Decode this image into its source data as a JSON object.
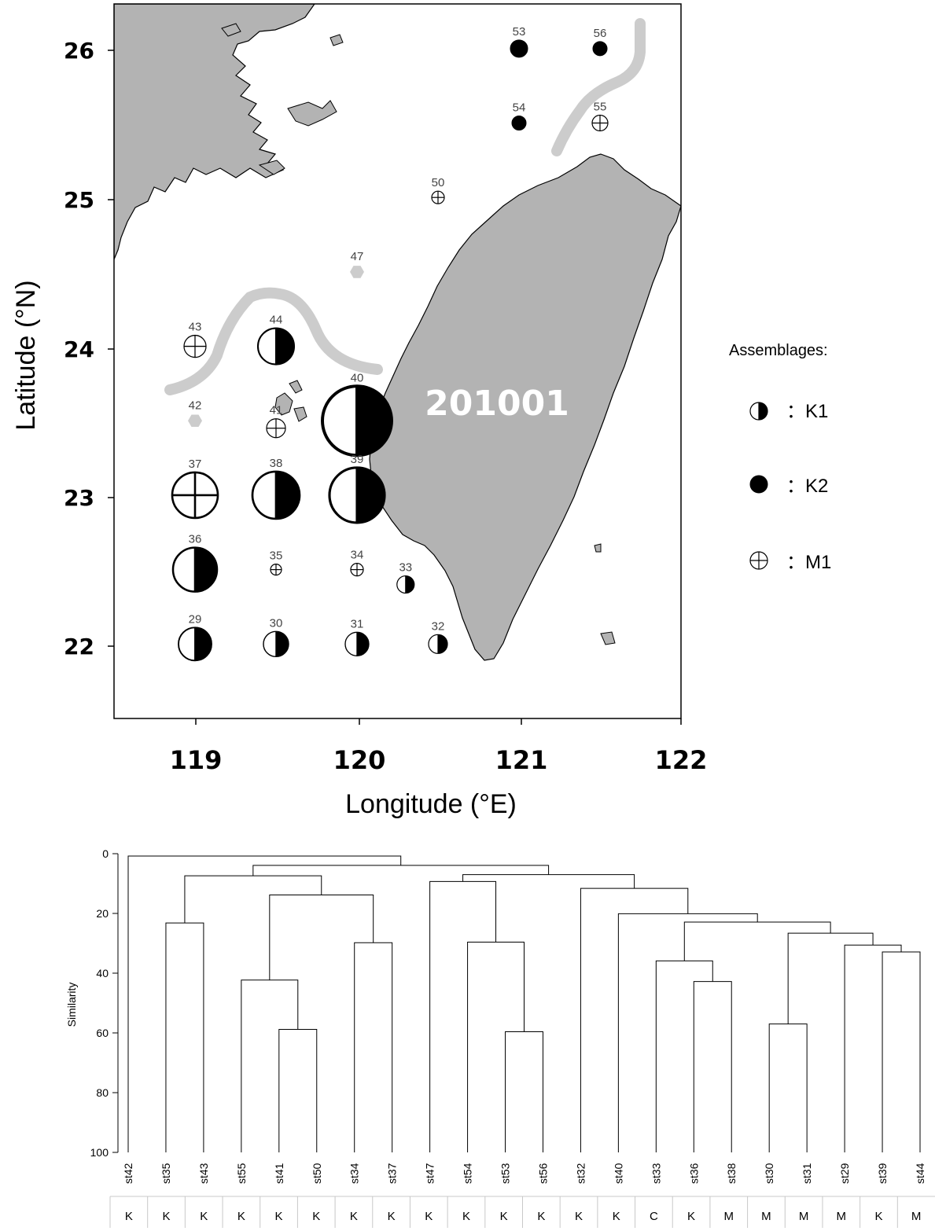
{
  "map": {
    "ylabel": "Latitude (°N)",
    "xlabel": "Longitude (°E)",
    "x_ticks": [
      "119",
      "120",
      "121",
      "122"
    ],
    "y_ticks": [
      "26",
      "25",
      "24",
      "23",
      "22"
    ],
    "xlim": [
      118.5,
      122.0
    ],
    "ylim": [
      21.5,
      26.3
    ],
    "cruise_label": "201001",
    "colors": {
      "land": "#b3b3b3",
      "current_line": "#cccccc",
      "station_missing": "#cccccc"
    },
    "stations": [
      {
        "id": "53",
        "lon": 121.0,
        "lat": 26.0,
        "type": "K2",
        "size": 11
      },
      {
        "id": "56",
        "lon": 121.5,
        "lat": 26.0,
        "type": "K2",
        "size": 9
      },
      {
        "id": "54",
        "lon": 121.0,
        "lat": 25.5,
        "type": "K2",
        "size": 9
      },
      {
        "id": "55",
        "lon": 121.5,
        "lat": 25.5,
        "type": "M1",
        "size": 10
      },
      {
        "id": "50",
        "lon": 120.5,
        "lat": 25.0,
        "type": "M1",
        "size": 8
      },
      {
        "id": "47",
        "lon": 120.0,
        "lat": 24.5,
        "type": "none",
        "size": 9
      },
      {
        "id": "43",
        "lon": 119.0,
        "lat": 24.0,
        "type": "M1",
        "size": 14
      },
      {
        "id": "44",
        "lon": 119.5,
        "lat": 24.0,
        "type": "K1",
        "size": 23
      },
      {
        "id": "42",
        "lon": 119.0,
        "lat": 23.5,
        "type": "none",
        "size": 9
      },
      {
        "id": "41",
        "lon": 119.5,
        "lat": 23.45,
        "type": "M1",
        "size": 12
      },
      {
        "id": "40",
        "lon": 120.0,
        "lat": 23.5,
        "type": "K1",
        "size": 44
      },
      {
        "id": "37",
        "lon": 119.0,
        "lat": 23.0,
        "type": "M1",
        "size": 29
      },
      {
        "id": "38",
        "lon": 119.5,
        "lat": 23.0,
        "type": "K1",
        "size": 30
      },
      {
        "id": "39",
        "lon": 120.0,
        "lat": 23.0,
        "type": "K1",
        "size": 35
      },
      {
        "id": "36",
        "lon": 119.0,
        "lat": 22.5,
        "type": "K1",
        "size": 28
      },
      {
        "id": "35",
        "lon": 119.5,
        "lat": 22.5,
        "type": "M1",
        "size": 7
      },
      {
        "id": "34",
        "lon": 120.0,
        "lat": 22.5,
        "type": "M1",
        "size": 8
      },
      {
        "id": "33",
        "lon": 120.3,
        "lat": 22.4,
        "type": "K1",
        "size": 11
      },
      {
        "id": "29",
        "lon": 119.0,
        "lat": 22.0,
        "type": "K1",
        "size": 21
      },
      {
        "id": "30",
        "lon": 119.5,
        "lat": 22.0,
        "type": "K1",
        "size": 16
      },
      {
        "id": "31",
        "lon": 120.0,
        "lat": 22.0,
        "type": "K1",
        "size": 15
      },
      {
        "id": "32",
        "lon": 120.5,
        "lat": 22.0,
        "type": "K1",
        "size": 12
      }
    ]
  },
  "legend": {
    "title": "Assemblages:",
    "items": [
      {
        "type": "K1",
        "label": "：K1"
      },
      {
        "type": "K2",
        "label": "：K2"
      },
      {
        "type": "M1",
        "label": "：M1"
      }
    ]
  },
  "chart_data": {
    "type": "dendrogram",
    "ylabel": "Similarity",
    "ylim": [
      0,
      100
    ],
    "y_ticks": [
      "0",
      "20",
      "40",
      "60",
      "80",
      "100"
    ],
    "leaves": [
      "st42",
      "st35",
      "st43",
      "st55",
      "st41",
      "st50",
      "st34",
      "st37",
      "st47",
      "st54",
      "st53",
      "st56",
      "st32",
      "st40",
      "st33",
      "st36",
      "st38",
      "st30",
      "st31",
      "st29",
      "st39",
      "st44"
    ],
    "merges": [
      {
        "a": "st41",
        "b": "st50",
        "height": 58.8
      },
      {
        "a": "st53",
        "b": "st56",
        "height": 59.6
      },
      {
        "a": "st30",
        "b": "st31",
        "height": 57.0
      },
      {
        "a": "st55",
        "b": "n0",
        "height": 42.3
      },
      {
        "a": "st36",
        "b": "st38",
        "height": 42.8
      },
      {
        "a": "st33",
        "b": "n4",
        "height": 35.9
      },
      {
        "a": "st39",
        "b": "st44",
        "height": 32.9
      },
      {
        "a": "st29",
        "b": "n6",
        "height": 30.6
      },
      {
        "a": "st34",
        "b": "st37",
        "height": 29.8
      },
      {
        "a": "st54",
        "b": "n1",
        "height": 29.6
      },
      {
        "a": "n2",
        "b": "n7",
        "height": 26.6
      },
      {
        "a": "st35",
        "b": "st43",
        "height": 23.2
      },
      {
        "a": "n5",
        "b": "n10",
        "height": 22.9
      },
      {
        "a": "st40",
        "b": "n12",
        "height": 20.1
      },
      {
        "a": "n3",
        "b": "n8",
        "height": 13.8
      },
      {
        "a": "st32",
        "b": "n13",
        "height": 11.6
      },
      {
        "a": "st47",
        "b": "n9",
        "height": 9.3
      },
      {
        "a": "n11",
        "b": "n14",
        "height": 7.4
      },
      {
        "a": "n16",
        "b": "n15",
        "height": 7.0
      },
      {
        "a": "n17",
        "b": "n18",
        "height": 3.9
      },
      {
        "a": "st42",
        "b": "n19",
        "height": 0.8
      }
    ]
  },
  "class_row": [
    "K",
    "K",
    "K",
    "K",
    "K",
    "K",
    "K",
    "K",
    "K",
    "K",
    "K",
    "K",
    "K",
    "K",
    "C",
    "K",
    "M",
    "M",
    "M",
    "M",
    "K",
    "M"
  ]
}
